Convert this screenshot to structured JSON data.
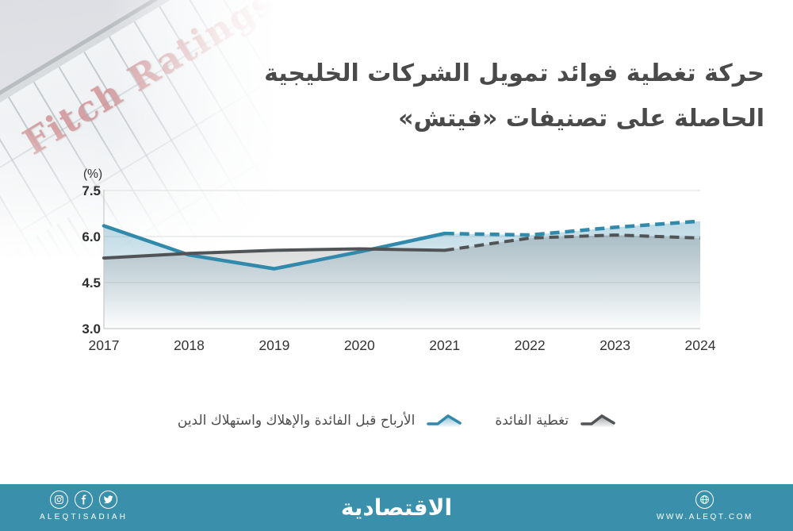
{
  "title": {
    "line1": "حركة تغطية فوائد تمويل الشركات الخليجية",
    "line2": "الحاصلة على تصنيفات «فيتش»"
  },
  "photo": {
    "sign_text": "Fitch Ratings"
  },
  "chart_data": {
    "type": "line",
    "ylabel": "(%)",
    "categories": [
      "2017",
      "2018",
      "2019",
      "2020",
      "2021",
      "2022",
      "2023",
      "2024"
    ],
    "series": [
      {
        "name": "الأرباح قبل الفائدة والإهلاك واستهلاك الدين",
        "color": "#3189ac",
        "fill_opacity": 0.32,
        "values": [
          6.35,
          5.4,
          4.95,
          5.5,
          6.1,
          6.05,
          6.3,
          6.5
        ]
      },
      {
        "name": "تغطية الفائدة",
        "color": "#515457",
        "fill_opacity": 0.28,
        "values": [
          5.3,
          5.45,
          5.55,
          5.6,
          5.55,
          5.95,
          6.05,
          5.95
        ]
      }
    ],
    "ylim": [
      3.0,
      7.5
    ],
    "yticks": [
      3.0,
      4.5,
      6.0,
      7.5
    ],
    "ytick_labels": [
      "3.0",
      "4.5",
      "6.0",
      "7.5"
    ],
    "solid_until_index": 4,
    "dashed_note": "values from 2021 onward drawn dashed (forecast)",
    "grid": true,
    "legend_position": "bottom",
    "area_fill": true
  },
  "footer": {
    "bg_color": "#3a90aa",
    "brand_latin": "ALEQTISADIAH",
    "logo": "الاقتصادية",
    "website": "WWW.ALEQT.COM",
    "icons": [
      "instagram-icon",
      "facebook-icon",
      "twitter-icon",
      "globe-icon"
    ]
  }
}
